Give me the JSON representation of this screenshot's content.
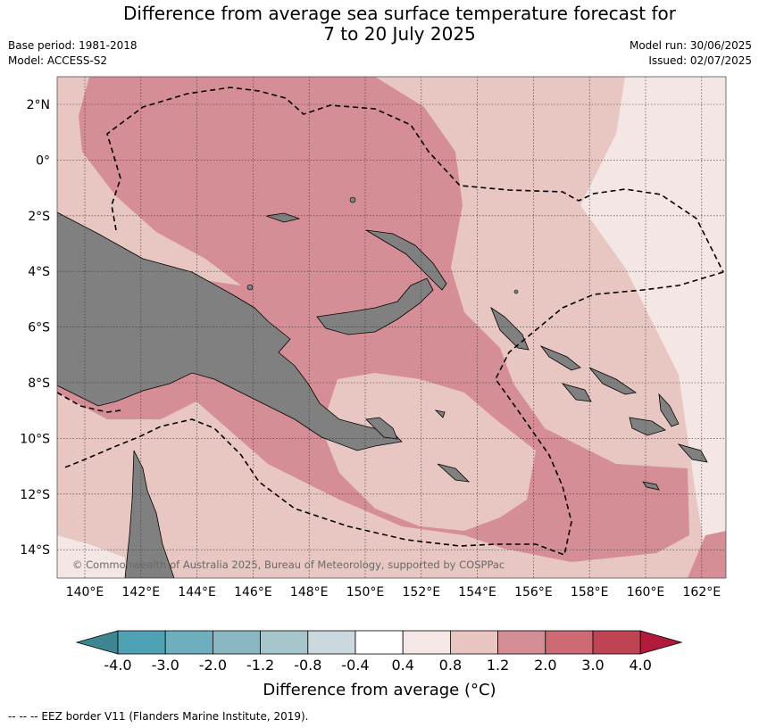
{
  "title_line1": "Difference from average sea surface temperature forecast for",
  "title_line2": "7 to 20 July 2025",
  "base_period": "Base period: 1981-2018",
  "model": "Model: ACCESS-S2",
  "model_run": "Model run: 30/06/2025",
  "issued": "Issued: 02/07/2025",
  "copyright": "© Commonwealth of Australia 2025, Bureau of Meteorology, supported by COSPPac",
  "lon_labels": [
    "140°E",
    "142°E",
    "144°E",
    "146°E",
    "148°E",
    "150°E",
    "152°E",
    "154°E",
    "156°E",
    "158°E",
    "160°E",
    "162°E"
  ],
  "lat_labels": [
    "2°N",
    "0°",
    "2°S",
    "4°S",
    "6°S",
    "8°S",
    "10°S",
    "12°S",
    "14°S"
  ],
  "colorbar": {
    "title": "Difference from average (°C)",
    "tick_labels": [
      "-4.0",
      "-3.0",
      "-2.0",
      "-1.2",
      "-0.8",
      "-0.4",
      "0.4",
      "0.8",
      "1.2",
      "2.0",
      "3.0",
      "4.0"
    ],
    "colors": [
      "#3d8591",
      "#4ea2b3",
      "#6eafbf",
      "#8ab7c2",
      "#a7c6cb",
      "#cbd8de",
      "#ffffff",
      "#f5e7e5",
      "#e8c5c1",
      "#d68e96",
      "#cd6a73",
      "#bf4453",
      "#b11a3a"
    ]
  },
  "legend_colors": {
    "land": "#808080",
    "anomaly_0_4_to_0_8": "#f3e6e4",
    "anomaly_0_8_to_1_2": "#e8c6c2",
    "anomaly_1_2_to_2_0": "#d68e96"
  },
  "footer": "--  --  -- EEZ border V11 (Flanders Marine Institute, 2019)."
}
